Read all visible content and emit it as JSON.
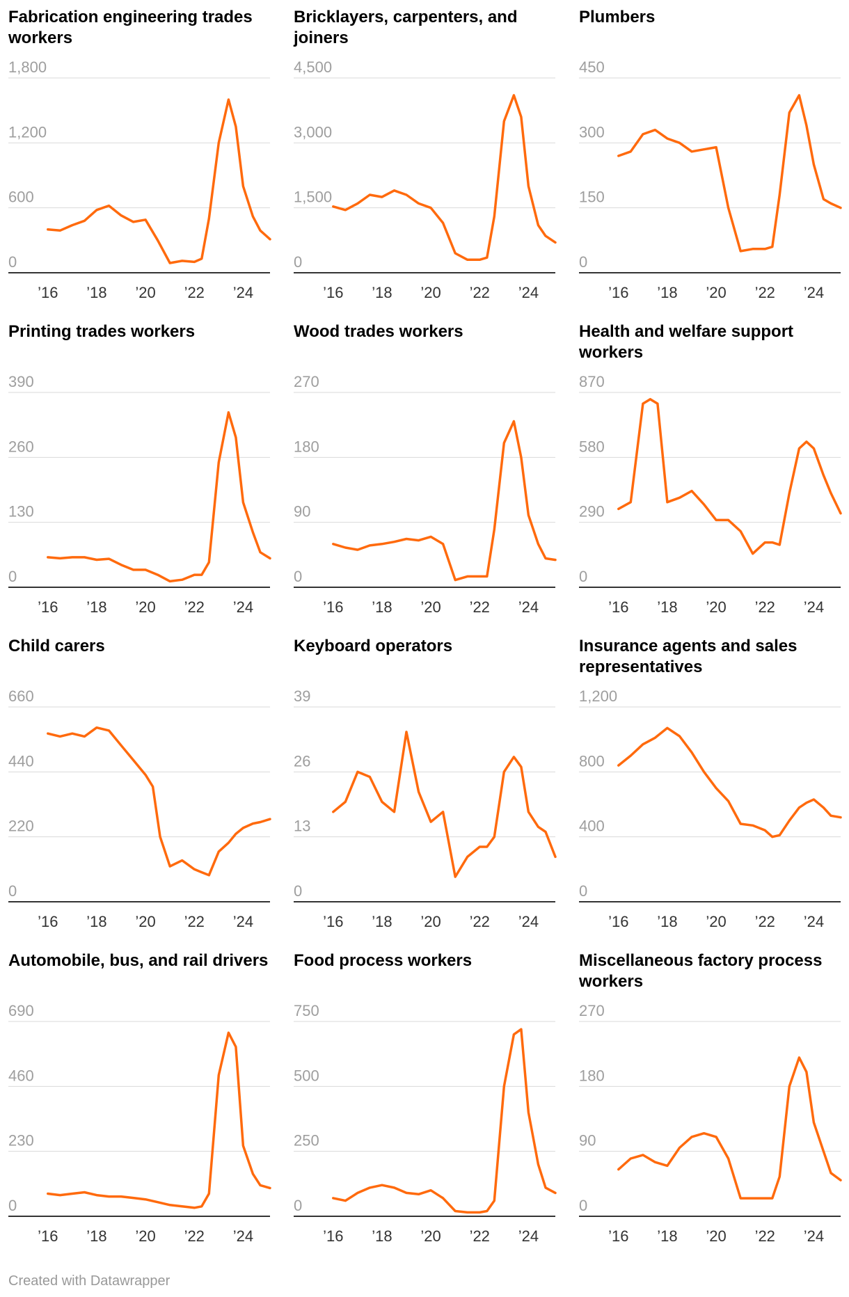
{
  "footer": "Created with Datawrapper",
  "colors": {
    "line": "#ff6a0d",
    "grid": "#d9d9d9",
    "axis": "#333333",
    "tick": "#9e9e9e"
  },
  "x_tick_labels": [
    "’16",
    "’18",
    "’20",
    "’22",
    "’24"
  ],
  "chart_data": [
    {
      "type": "line",
      "title": "Fabrication engineering trades workers",
      "y_ticks": [
        "0",
        "600",
        "1,200",
        "1,800"
      ],
      "ylim": [
        0,
        1800
      ],
      "x": [
        2016.0,
        2016.5,
        2017.0,
        2017.5,
        2018.0,
        2018.5,
        2019.0,
        2019.5,
        2020.0,
        2020.5,
        2021.0,
        2021.5,
        2022.0,
        2022.3,
        2022.6,
        2023.0,
        2023.4,
        2023.7,
        2024.0,
        2024.4,
        2024.7,
        2025.1
      ],
      "values": [
        400,
        390,
        440,
        480,
        580,
        620,
        530,
        470,
        490,
        300,
        90,
        110,
        100,
        130,
        500,
        1200,
        1600,
        1350,
        800,
        520,
        390,
        310
      ]
    },
    {
      "type": "line",
      "title": "Bricklayers, carpenters, and joiners",
      "y_ticks": [
        "0",
        "1,500",
        "3,000",
        "4,500"
      ],
      "ylim": [
        0,
        4500
      ],
      "x": [
        2016.0,
        2016.5,
        2017.0,
        2017.5,
        2018.0,
        2018.5,
        2019.0,
        2019.5,
        2020.0,
        2020.5,
        2021.0,
        2021.5,
        2022.0,
        2022.3,
        2022.6,
        2023.0,
        2023.4,
        2023.7,
        2024.0,
        2024.4,
        2024.7,
        2025.1
      ],
      "values": [
        1530,
        1450,
        1600,
        1800,
        1750,
        1900,
        1800,
        1600,
        1500,
        1150,
        450,
        300,
        300,
        350,
        1300,
        3500,
        4100,
        3600,
        2000,
        1100,
        850,
        700
      ]
    },
    {
      "type": "line",
      "title": "Plumbers",
      "y_ticks": [
        "0",
        "150",
        "300",
        "450"
      ],
      "ylim": [
        0,
        450
      ],
      "x": [
        2016.0,
        2016.5,
        2017.0,
        2017.5,
        2018.0,
        2018.5,
        2019.0,
        2019.5,
        2020.0,
        2020.5,
        2021.0,
        2021.5,
        2022.0,
        2022.3,
        2022.6,
        2023.0,
        2023.4,
        2023.7,
        2024.0,
        2024.4,
        2024.7,
        2025.1
      ],
      "values": [
        270,
        280,
        320,
        330,
        310,
        300,
        280,
        285,
        290,
        150,
        50,
        55,
        55,
        60,
        180,
        370,
        410,
        340,
        250,
        170,
        160,
        150
      ]
    },
    {
      "type": "line",
      "title": "Printing trades workers",
      "y_ticks": [
        "0",
        "130",
        "260",
        "390"
      ],
      "ylim": [
        0,
        390
      ],
      "x": [
        2016.0,
        2016.5,
        2017.0,
        2017.5,
        2018.0,
        2018.5,
        2019.0,
        2019.5,
        2020.0,
        2020.5,
        2021.0,
        2021.5,
        2022.0,
        2022.3,
        2022.6,
        2023.0,
        2023.4,
        2023.7,
        2024.0,
        2024.4,
        2024.7,
        2025.1
      ],
      "values": [
        60,
        58,
        60,
        60,
        55,
        57,
        45,
        35,
        35,
        25,
        12,
        15,
        25,
        25,
        50,
        250,
        350,
        300,
        170,
        110,
        70,
        58
      ]
    },
    {
      "type": "line",
      "title": "Wood trades workers",
      "y_ticks": [
        "0",
        "90",
        "180",
        "270"
      ],
      "ylim": [
        0,
        270
      ],
      "x": [
        2016.0,
        2016.5,
        2017.0,
        2017.5,
        2018.0,
        2018.5,
        2019.0,
        2019.5,
        2020.0,
        2020.5,
        2021.0,
        2021.5,
        2022.0,
        2022.3,
        2022.6,
        2023.0,
        2023.4,
        2023.7,
        2024.0,
        2024.4,
        2024.7,
        2025.1
      ],
      "values": [
        60,
        55,
        52,
        58,
        60,
        63,
        67,
        65,
        70,
        60,
        10,
        15,
        15,
        15,
        80,
        200,
        230,
        180,
        100,
        60,
        40,
        38
      ]
    },
    {
      "type": "line",
      "title": "Health and welfare support workers",
      "y_ticks": [
        "0",
        "290",
        "580",
        "870"
      ],
      "ylim": [
        0,
        870
      ],
      "x": [
        2016.0,
        2016.5,
        2017.0,
        2017.3,
        2017.6,
        2018.0,
        2018.5,
        2019.0,
        2019.5,
        2020.0,
        2020.5,
        2021.0,
        2021.5,
        2022.0,
        2022.3,
        2022.6,
        2023.0,
        2023.4,
        2023.7,
        2024.0,
        2024.4,
        2024.7,
        2025.1
      ],
      "values": [
        350,
        380,
        820,
        840,
        820,
        380,
        400,
        430,
        370,
        300,
        300,
        250,
        150,
        200,
        200,
        190,
        420,
        620,
        650,
        620,
        500,
        420,
        330
      ]
    },
    {
      "type": "line",
      "title": "Child carers",
      "y_ticks": [
        "0",
        "220",
        "440",
        "660"
      ],
      "ylim": [
        0,
        660
      ],
      "x": [
        2016.0,
        2016.5,
        2017.0,
        2017.5,
        2018.0,
        2018.5,
        2019.0,
        2019.5,
        2020.0,
        2020.3,
        2020.6,
        2021.0,
        2021.5,
        2022.0,
        2022.3,
        2022.6,
        2023.0,
        2023.4,
        2023.7,
        2024.0,
        2024.4,
        2024.7,
        2025.1
      ],
      "values": [
        570,
        560,
        570,
        560,
        590,
        580,
        530,
        480,
        430,
        390,
        220,
        120,
        140,
        110,
        100,
        90,
        170,
        200,
        230,
        250,
        265,
        270,
        280
      ]
    },
    {
      "type": "line",
      "title": "Keyboard operators",
      "y_ticks": [
        "0",
        "13",
        "26",
        "39"
      ],
      "ylim": [
        0,
        39
      ],
      "x": [
        2016.0,
        2016.5,
        2017.0,
        2017.5,
        2018.0,
        2018.5,
        2019.0,
        2019.5,
        2020.0,
        2020.5,
        2021.0,
        2021.5,
        2022.0,
        2022.3,
        2022.6,
        2023.0,
        2023.4,
        2023.7,
        2024.0,
        2024.4,
        2024.7,
        2025.1
      ],
      "values": [
        18,
        20,
        26,
        25,
        20,
        18,
        34,
        22,
        16,
        18,
        5,
        9,
        11,
        11,
        13,
        26,
        29,
        27,
        18,
        15,
        14,
        9
      ]
    },
    {
      "type": "line",
      "title": "Insurance agents and sales representatives",
      "y_ticks": [
        "0",
        "400",
        "800",
        "1,200"
      ],
      "ylim": [
        0,
        1200
      ],
      "x": [
        2016.0,
        2016.5,
        2017.0,
        2017.5,
        2018.0,
        2018.5,
        2019.0,
        2019.5,
        2020.0,
        2020.5,
        2021.0,
        2021.5,
        2022.0,
        2022.3,
        2022.6,
        2023.0,
        2023.4,
        2023.7,
        2024.0,
        2024.4,
        2024.7,
        2025.1
      ],
      "values": [
        840,
        900,
        970,
        1010,
        1070,
        1020,
        920,
        800,
        700,
        620,
        480,
        470,
        440,
        400,
        410,
        500,
        580,
        610,
        630,
        580,
        530,
        520
      ]
    },
    {
      "type": "line",
      "title": "Automobile, bus, and rail drivers",
      "y_ticks": [
        "0",
        "230",
        "460",
        "690"
      ],
      "ylim": [
        0,
        690
      ],
      "x": [
        2016.0,
        2016.5,
        2017.0,
        2017.5,
        2018.0,
        2018.5,
        2019.0,
        2019.5,
        2020.0,
        2020.5,
        2021.0,
        2021.5,
        2022.0,
        2022.3,
        2022.6,
        2023.0,
        2023.4,
        2023.7,
        2024.0,
        2024.4,
        2024.7,
        2025.1
      ],
      "values": [
        80,
        75,
        80,
        85,
        75,
        70,
        70,
        65,
        60,
        50,
        40,
        35,
        30,
        35,
        80,
        500,
        650,
        600,
        250,
        150,
        110,
        100
      ]
    },
    {
      "type": "line",
      "title": "Food process workers",
      "y_ticks": [
        "0",
        "250",
        "500",
        "750"
      ],
      "ylim": [
        0,
        750
      ],
      "x": [
        2016.0,
        2016.5,
        2017.0,
        2017.5,
        2018.0,
        2018.5,
        2019.0,
        2019.5,
        2020.0,
        2020.5,
        2021.0,
        2021.5,
        2022.0,
        2022.3,
        2022.6,
        2023.0,
        2023.4,
        2023.7,
        2024.0,
        2024.4,
        2024.7,
        2025.1
      ],
      "values": [
        70,
        60,
        90,
        110,
        120,
        110,
        90,
        85,
        100,
        70,
        20,
        15,
        15,
        20,
        60,
        500,
        700,
        720,
        400,
        200,
        110,
        90
      ]
    },
    {
      "type": "line",
      "title": "Miscellaneous factory process workers",
      "y_ticks": [
        "0",
        "90",
        "180",
        "270"
      ],
      "ylim": [
        0,
        270
      ],
      "x": [
        2016.0,
        2016.5,
        2017.0,
        2017.5,
        2018.0,
        2018.5,
        2019.0,
        2019.5,
        2020.0,
        2020.5,
        2021.0,
        2021.5,
        2022.0,
        2022.3,
        2022.6,
        2023.0,
        2023.4,
        2023.7,
        2024.0,
        2024.4,
        2024.7,
        2025.1
      ],
      "values": [
        65,
        80,
        85,
        75,
        70,
        95,
        110,
        115,
        110,
        80,
        25,
        25,
        25,
        25,
        55,
        180,
        220,
        200,
        130,
        90,
        60,
        50
      ]
    }
  ]
}
